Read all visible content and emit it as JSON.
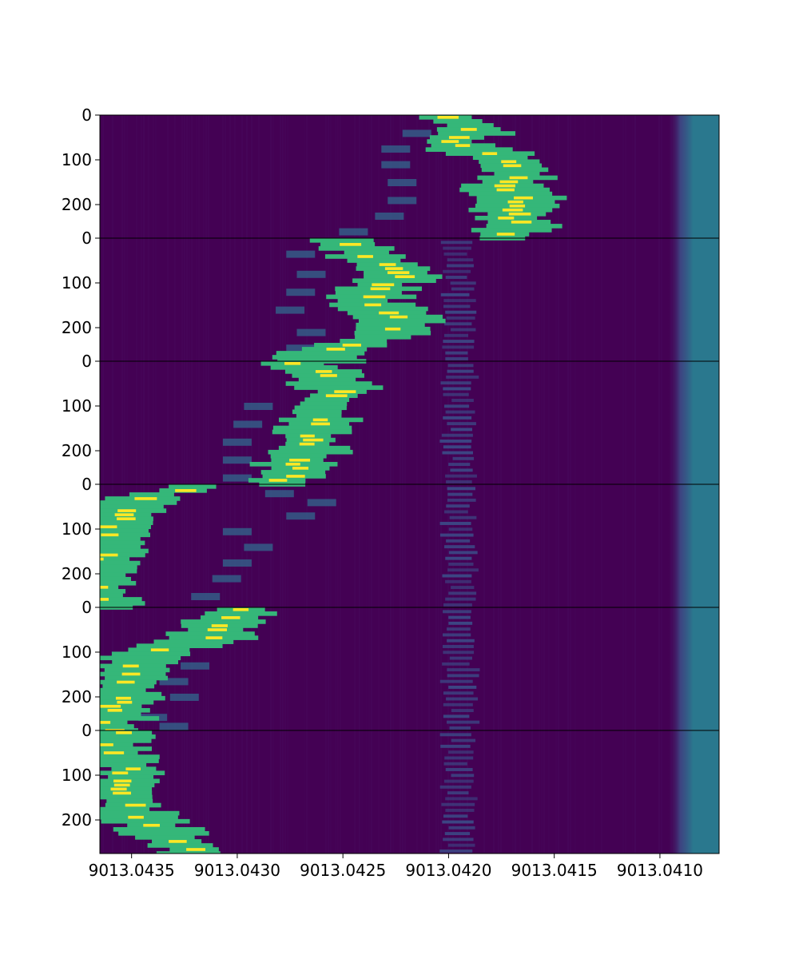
{
  "chart_data": {
    "type": "heatmap",
    "colormap": "viridis",
    "colors": {
      "background": "#440154",
      "noise": "#46075a",
      "band": "#3b4f8a",
      "edge_band": "#2a788e",
      "track": "#35b779",
      "peak": "#fde725",
      "faint": "#31688e",
      "separator": "#000000"
    },
    "x_axis": {
      "inverted": true,
      "xlim": [
        9013.04365,
        9013.04072
      ],
      "ticks": [
        {
          "value": 9013.0435,
          "label": "9013.0435"
        },
        {
          "value": 9013.043,
          "label": "9013.0430"
        },
        {
          "value": 9013.0425,
          "label": "9013.0425"
        },
        {
          "value": 9013.042,
          "label": "9013.0420"
        },
        {
          "value": 9013.0415,
          "label": "9013.0415"
        },
        {
          "value": 9013.041,
          "label": "9013.0410"
        }
      ]
    },
    "y_axis": {
      "ylim": [
        0,
        275
      ],
      "ticks": [
        {
          "value": 0,
          "label": "0"
        },
        {
          "value": 100,
          "label": "100"
        },
        {
          "value": 200,
          "label": "200"
        }
      ]
    },
    "edge_band_x": 9013.04092,
    "stacked_panels": [
      {
        "track": [
          [
            9013.042,
            0
          ],
          [
            9013.04195,
            15
          ],
          [
            9013.04185,
            35
          ],
          [
            9013.042,
            55
          ],
          [
            9013.04185,
            80
          ],
          [
            9013.04172,
            110
          ],
          [
            9013.04168,
            130
          ],
          [
            9013.04175,
            160
          ],
          [
            9013.0417,
            180
          ],
          [
            9013.04165,
            200
          ],
          [
            9013.04172,
            225
          ],
          [
            9013.04165,
            250
          ],
          [
            9013.04178,
            272
          ]
        ],
        "faint": [
          [
            9013.04215,
            40
          ],
          [
            9013.04225,
            75
          ],
          [
            9013.04225,
            110
          ],
          [
            9013.04222,
            150
          ],
          [
            9013.04222,
            190
          ],
          [
            9013.04228,
            225
          ],
          [
            9013.04245,
            260
          ]
        ],
        "band_rows": false
      },
      {
        "track": [
          [
            9013.04255,
            0
          ],
          [
            9013.0425,
            15
          ],
          [
            9013.0424,
            35
          ],
          [
            9013.0423,
            60
          ],
          [
            9013.0422,
            85
          ],
          [
            9013.04235,
            110
          ],
          [
            9013.04242,
            140
          ],
          [
            9013.04225,
            170
          ],
          [
            9013.04225,
            200
          ],
          [
            9013.04235,
            225
          ],
          [
            9013.04255,
            250
          ],
          [
            9013.04262,
            270
          ]
        ],
        "faint": [
          [
            9013.0427,
            35
          ],
          [
            9013.04265,
            80
          ],
          [
            9013.0427,
            120
          ],
          [
            9013.04275,
            160
          ],
          [
            9013.04265,
            210
          ],
          [
            9013.0427,
            245
          ]
        ],
        "band_rows": true
      },
      {
        "track": [
          [
            9013.0428,
            0
          ],
          [
            9013.0426,
            20
          ],
          [
            9013.04255,
            45
          ],
          [
            9013.0425,
            70
          ],
          [
            9013.04262,
            100
          ],
          [
            9013.04262,
            130
          ],
          [
            9013.04268,
            160
          ],
          [
            9013.04262,
            190
          ],
          [
            9013.0427,
            220
          ],
          [
            9013.04275,
            250
          ],
          [
            9013.0428,
            272
          ]
        ],
        "faint": [
          [
            9013.0429,
            100
          ],
          [
            9013.04295,
            140
          ],
          [
            9013.043,
            180
          ],
          [
            9013.043,
            220
          ],
          [
            9013.043,
            260
          ]
        ],
        "band_rows": true
      },
      {
        "track": [
          [
            9013.04315,
            0
          ],
          [
            9013.04335,
            20
          ],
          [
            9013.04355,
            45
          ],
          [
            9013.04355,
            70
          ],
          [
            9013.0436,
            90
          ],
          [
            9013.0436,
            120
          ],
          [
            9013.0436,
            150
          ],
          [
            9013.04365,
            170
          ]
        ],
        "faint": [
          [
            9013.0428,
            20
          ],
          [
            9013.0426,
            40
          ],
          [
            9013.0427,
            70
          ],
          [
            9013.043,
            105
          ],
          [
            9013.0429,
            140
          ],
          [
            9013.043,
            175
          ],
          [
            9013.04305,
            210
          ],
          [
            9013.04315,
            250
          ]
        ],
        "band_rows": true
      },
      {
        "track": [
          [
            9013.04295,
            0
          ],
          [
            9013.04305,
            20
          ],
          [
            9013.04305,
            40
          ],
          [
            9013.04315,
            70
          ],
          [
            9013.04335,
            95
          ],
          [
            9013.04345,
            115
          ],
          [
            9013.0435,
            150
          ],
          [
            9013.04355,
            180
          ],
          [
            9013.04355,
            205
          ],
          [
            9013.0436,
            225
          ],
          [
            9013.0436,
            260
          ]
        ],
        "faint": [
          [
            9013.0432,
            130
          ],
          [
            9013.0433,
            165
          ],
          [
            9013.04325,
            200
          ],
          [
            9013.0434,
            245
          ],
          [
            9013.0433,
            265
          ]
        ],
        "band_rows": true
      },
      {
        "track": [
          [
            9013.04355,
            0
          ],
          [
            9013.0436,
            20
          ],
          [
            9013.04355,
            55
          ],
          [
            9013.0435,
            85
          ],
          [
            9013.04355,
            110
          ],
          [
            9013.04355,
            150
          ],
          [
            9013.0435,
            175
          ],
          [
            9013.04345,
            210
          ],
          [
            9013.0433,
            245
          ],
          [
            9013.0432,
            270
          ]
        ],
        "faint": [],
        "band_rows": true
      }
    ]
  }
}
